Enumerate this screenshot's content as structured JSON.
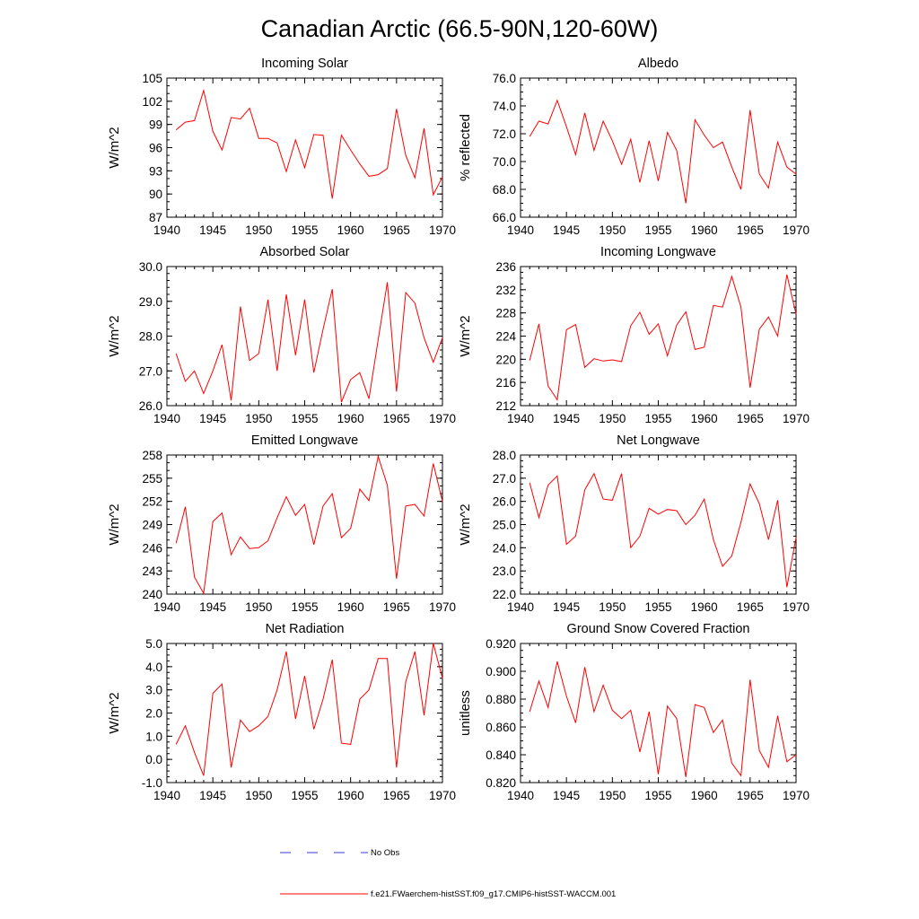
{
  "figure": {
    "title": "Canadian Arctic (66.5-90N,120-60W)"
  },
  "colors": {
    "model": "#ff0000",
    "obs": "#3a3ad0",
    "axes": "#000000"
  },
  "legend": {
    "entries": [
      {
        "label": "No Obs",
        "style": "dashed",
        "color_key": "obs"
      },
      {
        "label": "f.e21.FWaerchem-histSST.f09_g17.CMIP6-histSST-WACCM.001",
        "style": "solid",
        "color_key": "model"
      }
    ]
  },
  "chart_data": [
    {
      "type": "line",
      "title": "Incoming Solar",
      "xlabel": "",
      "ylabel": "W/m^2",
      "xlim": [
        1940,
        1970
      ],
      "ylim": [
        87,
        105
      ],
      "xticks": [
        1940,
        1945,
        1950,
        1955,
        1960,
        1965,
        1970
      ],
      "yticks": [
        "87",
        "90",
        "93",
        "96",
        "99",
        "102",
        "105"
      ],
      "yminor": 1,
      "x": [
        1941,
        1942,
        1943,
        1944,
        1945,
        1946,
        1947,
        1948,
        1949,
        1950,
        1951,
        1952,
        1953,
        1954,
        1955,
        1956,
        1957,
        1958,
        1959,
        1960,
        1961,
        1962,
        1963,
        1964,
        1965,
        1966,
        1967,
        1968,
        1969,
        1970
      ],
      "series": [
        {
          "values": [
            98.3,
            99.3,
            99.5,
            103.4,
            98.1,
            95.7,
            99.9,
            99.7,
            101.1,
            97.2,
            97.2,
            96.6,
            92.9,
            97.0,
            93.4,
            97.7,
            97.6,
            89.4,
            97.6,
            95.7,
            93.9,
            92.3,
            92.5,
            93.3,
            101.0,
            95.0,
            92.1,
            98.5,
            89.9,
            92.2
          ]
        }
      ]
    },
    {
      "type": "line",
      "title": "Albedo",
      "xlabel": "",
      "ylabel": "% reflected",
      "xlim": [
        1940,
        1970
      ],
      "ylim": [
        66.0,
        76.0
      ],
      "xticks": [
        1940,
        1945,
        1950,
        1955,
        1960,
        1965,
        1970
      ],
      "yticks": [
        "66.0",
        "68.0",
        "70.0",
        "72.0",
        "74.0",
        "76.0"
      ],
      "yminor": 0.5,
      "x": [
        1941,
        1942,
        1943,
        1944,
        1945,
        1946,
        1947,
        1948,
        1949,
        1950,
        1951,
        1952,
        1953,
        1954,
        1955,
        1956,
        1957,
        1958,
        1959,
        1960,
        1961,
        1962,
        1963,
        1964,
        1965,
        1966,
        1967,
        1968,
        1969,
        1970
      ],
      "series": [
        {
          "values": [
            71.8,
            72.9,
            72.7,
            74.4,
            72.5,
            70.5,
            73.5,
            70.8,
            72.9,
            71.5,
            69.8,
            71.6,
            68.5,
            71.5,
            68.6,
            72.1,
            70.8,
            67.0,
            73.0,
            71.9,
            71.0,
            71.4,
            69.6,
            68.0,
            73.7,
            69.1,
            68.1,
            71.4,
            69.6,
            69.1
          ]
        }
      ]
    },
    {
      "type": "line",
      "title": "Absorbed Solar",
      "xlabel": "",
      "ylabel": "W/m^2",
      "xlim": [
        1940,
        1970
      ],
      "ylim": [
        26.0,
        30.0
      ],
      "xticks": [
        1940,
        1945,
        1950,
        1955,
        1960,
        1965,
        1970
      ],
      "yticks": [
        "26.0",
        "27.0",
        "28.0",
        "29.0",
        "30.0"
      ],
      "yminor": 0.2,
      "x": [
        1941,
        1942,
        1943,
        1944,
        1945,
        1946,
        1947,
        1948,
        1949,
        1950,
        1951,
        1952,
        1953,
        1954,
        1955,
        1956,
        1957,
        1958,
        1959,
        1960,
        1961,
        1962,
        1963,
        1964,
        1965,
        1966,
        1967,
        1968,
        1969,
        1970
      ],
      "series": [
        {
          "values": [
            27.5,
            26.7,
            27.0,
            26.35,
            27.0,
            27.75,
            26.15,
            28.85,
            27.3,
            27.5,
            29.05,
            27.0,
            29.2,
            27.45,
            29.05,
            26.95,
            28.2,
            29.35,
            26.1,
            26.75,
            26.95,
            26.2,
            27.9,
            29.55,
            26.4,
            29.25,
            28.95,
            27.95,
            27.25,
            27.95
          ]
        }
      ]
    },
    {
      "type": "line",
      "title": "Incoming Longwave",
      "xlabel": "",
      "ylabel": "W/m^2",
      "xlim": [
        1940,
        1970
      ],
      "ylim": [
        212,
        236
      ],
      "xticks": [
        1940,
        1945,
        1950,
        1955,
        1960,
        1965,
        1970
      ],
      "yticks": [
        "212",
        "216",
        "220",
        "224",
        "228",
        "232",
        "236"
      ],
      "yminor": 1,
      "x": [
        1941,
        1942,
        1943,
        1944,
        1945,
        1946,
        1947,
        1948,
        1949,
        1950,
        1951,
        1952,
        1953,
        1954,
        1955,
        1956,
        1957,
        1958,
        1959,
        1960,
        1961,
        1962,
        1963,
        1964,
        1965,
        1966,
        1967,
        1968,
        1969,
        1970
      ],
      "series": [
        {
          "values": [
            219.8,
            226.1,
            215.4,
            213.0,
            225.1,
            226.0,
            218.6,
            220.1,
            219.7,
            219.9,
            219.6,
            225.8,
            228.1,
            224.3,
            226.1,
            220.6,
            225.9,
            228.2,
            221.7,
            222.1,
            229.3,
            229.0,
            234.3,
            229.0,
            215.1,
            225.2,
            227.3,
            224.0,
            234.6,
            227.8
          ]
        }
      ]
    },
    {
      "type": "line",
      "title": "Emitted Longwave",
      "xlabel": "",
      "ylabel": "W/m^2",
      "xlim": [
        1940,
        1970
      ],
      "ylim": [
        240,
        258
      ],
      "xticks": [
        1940,
        1945,
        1950,
        1955,
        1960,
        1965,
        1970
      ],
      "yticks": [
        "240",
        "243",
        "246",
        "249",
        "252",
        "255",
        "258"
      ],
      "yminor": 1,
      "x": [
        1941,
        1942,
        1943,
        1944,
        1945,
        1946,
        1947,
        1948,
        1949,
        1950,
        1951,
        1952,
        1953,
        1954,
        1955,
        1956,
        1957,
        1958,
        1959,
        1960,
        1961,
        1962,
        1963,
        1964,
        1965,
        1966,
        1967,
        1968,
        1969,
        1970
      ],
      "series": [
        {
          "values": [
            246.6,
            251.3,
            242.2,
            240.1,
            249.4,
            250.5,
            245.1,
            247.4,
            245.9,
            246.0,
            246.9,
            249.9,
            252.6,
            250.2,
            251.6,
            246.4,
            251.4,
            253.0,
            247.3,
            248.5,
            253.6,
            252.1,
            257.8,
            254.1,
            242.0,
            251.4,
            251.6,
            250.1,
            256.9,
            252.0
          ]
        }
      ]
    },
    {
      "type": "line",
      "title": "Net Longwave",
      "xlabel": "",
      "ylabel": "W/m^2",
      "xlim": [
        1940,
        1970
      ],
      "ylim": [
        22.0,
        28.0
      ],
      "xticks": [
        1940,
        1945,
        1950,
        1955,
        1960,
        1965,
        1970
      ],
      "yticks": [
        "22.0",
        "23.0",
        "24.0",
        "25.0",
        "26.0",
        "27.0",
        "28.0"
      ],
      "yminor": 0.25,
      "x": [
        1941,
        1942,
        1943,
        1944,
        1945,
        1946,
        1947,
        1948,
        1949,
        1950,
        1951,
        1952,
        1953,
        1954,
        1955,
        1956,
        1957,
        1958,
        1959,
        1960,
        1961,
        1962,
        1963,
        1964,
        1965,
        1966,
        1967,
        1968,
        1969,
        1970
      ],
      "series": [
        {
          "values": [
            26.8,
            25.3,
            26.7,
            27.1,
            24.15,
            24.5,
            26.5,
            27.2,
            26.1,
            26.05,
            27.2,
            24.0,
            24.5,
            25.7,
            25.45,
            25.65,
            25.6,
            25.0,
            25.4,
            26.1,
            24.35,
            23.2,
            23.65,
            25.1,
            26.75,
            25.9,
            24.35,
            26.05,
            22.3,
            24.45
          ]
        }
      ]
    },
    {
      "type": "line",
      "title": "Net Radiation",
      "xlabel": "",
      "ylabel": "W/m^2",
      "xlim": [
        1940,
        1970
      ],
      "ylim": [
        -1.0,
        5.0
      ],
      "xticks": [
        1940,
        1945,
        1950,
        1955,
        1960,
        1965,
        1970
      ],
      "yticks": [
        "-1.0",
        "0.0",
        "1.0",
        "2.0",
        "3.0",
        "4.0",
        "5.0"
      ],
      "yminor": 0.25,
      "x": [
        1941,
        1942,
        1943,
        1944,
        1945,
        1946,
        1947,
        1948,
        1949,
        1950,
        1951,
        1952,
        1953,
        1954,
        1955,
        1956,
        1957,
        1958,
        1959,
        1960,
        1961,
        1962,
        1963,
        1964,
        1965,
        1966,
        1967,
        1968,
        1969,
        1970
      ],
      "series": [
        {
          "values": [
            0.65,
            1.45,
            0.3,
            -0.7,
            2.85,
            3.25,
            -0.35,
            1.7,
            1.2,
            1.45,
            1.85,
            3.0,
            4.65,
            1.75,
            3.6,
            1.3,
            2.6,
            4.3,
            0.7,
            0.65,
            2.6,
            3.0,
            4.35,
            4.35,
            -0.35,
            3.35,
            4.65,
            1.9,
            5.0,
            3.5
          ]
        }
      ]
    },
    {
      "type": "line",
      "title": "Ground Snow Covered Fraction",
      "xlabel": "",
      "ylabel": "unitless",
      "xlim": [
        1940,
        1970
      ],
      "ylim": [
        0.82,
        0.92
      ],
      "xticks": [
        1940,
        1945,
        1950,
        1955,
        1960,
        1965,
        1970
      ],
      "yticks": [
        "0.820",
        "0.840",
        "0.860",
        "0.880",
        "0.900",
        "0.920"
      ],
      "yminor": 0.005,
      "x": [
        1941,
        1942,
        1943,
        1944,
        1945,
        1946,
        1947,
        1948,
        1949,
        1950,
        1951,
        1952,
        1953,
        1954,
        1955,
        1956,
        1957,
        1958,
        1959,
        1960,
        1961,
        1962,
        1963,
        1964,
        1965,
        1966,
        1967,
        1968,
        1969,
        1970
      ],
      "series": [
        {
          "values": [
            0.871,
            0.893,
            0.874,
            0.907,
            0.882,
            0.863,
            0.903,
            0.871,
            0.89,
            0.872,
            0.866,
            0.872,
            0.842,
            0.871,
            0.826,
            0.875,
            0.866,
            0.824,
            0.876,
            0.874,
            0.856,
            0.865,
            0.834,
            0.825,
            0.894,
            0.843,
            0.831,
            0.868,
            0.835,
            0.84
          ]
        }
      ]
    }
  ]
}
